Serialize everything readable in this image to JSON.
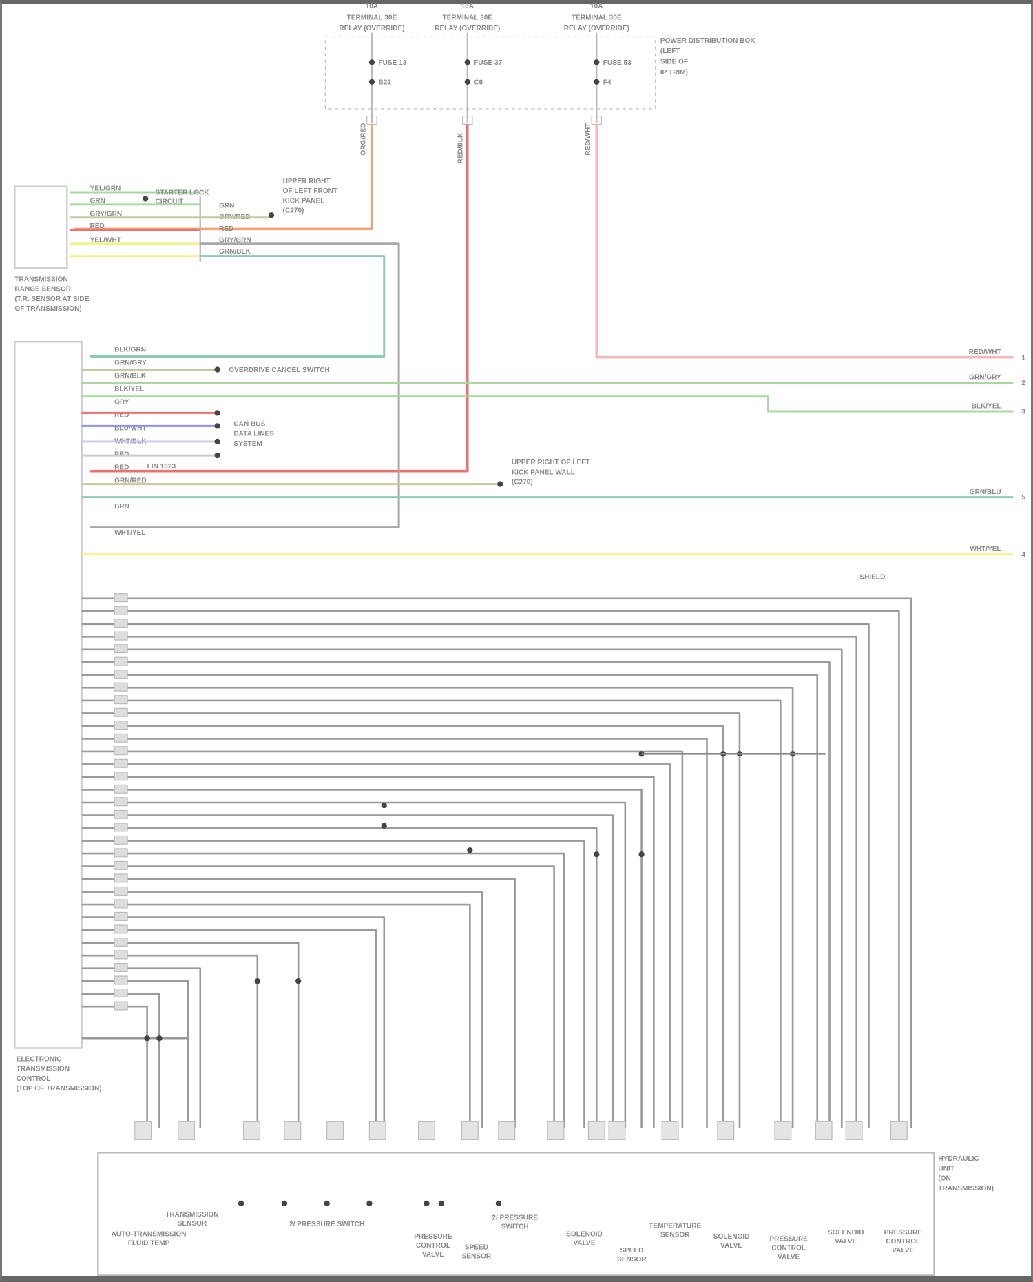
{
  "fuses": [
    {
      "rating": "10A",
      "line1": "TERMINAL 30E",
      "line2": "RELAY (OVERRIDE)",
      "fuse": "FUSE 13",
      "conn": "B22"
    },
    {
      "rating": "10A",
      "line1": "TERMINAL 30E",
      "line2": "RELAY (OVERRIDE)",
      "fuse": "FUSE 37",
      "conn": "C6"
    },
    {
      "rating": "10A",
      "line1": "TERMINAL 30E",
      "line2": "RELAY (OVERRIDE)",
      "fuse": "FUSE 53",
      "conn": "F4"
    }
  ],
  "fuse_box_label": [
    "POWER DISTRIBUTION BOX",
    "(LEFT",
    "SIDE OF",
    "IP TRIM)"
  ],
  "range_sensor": {
    "label": [
      "TRANSMISSION",
      "RANGE SENSOR",
      "(T.R. SENSOR AT SIDE",
      "OF TRANSMISSION)"
    ],
    "wires": [
      "YEL/GRN",
      "GRN",
      "GRY/GRN",
      "RED",
      "YEL/WHT",
      ""
    ],
    "splice_label": [
      "STARTER LOCK",
      "CIRCUIT"
    ],
    "right_wires": [
      "GRN",
      "GRY/RED",
      "RED",
      "GRY/GRN",
      "GRN/BLK"
    ],
    "ground_label": [
      "UPPER RIGHT",
      "OF LEFT FRONT",
      "KICK PANEL",
      "(C270)"
    ]
  },
  "fuse_wires": [
    "ORG/RED",
    "RED/BLK",
    "RED/WHT"
  ],
  "ecu": {
    "label": [
      "ELECTRONIC",
      "TRANSMISSION",
      "CONTROL",
      "(TOP OF TRANSMISSION)"
    ],
    "pin_wires": [
      "BLK/GRN",
      "GRN/GRY",
      "GRN/BLK",
      "BLK/YEL",
      "GRY",
      "RED",
      "BLU/WHT",
      "WHT/BLK",
      "RED",
      "RED",
      "GRN/RED",
      "",
      "BRN",
      "",
      "WHT/YEL",
      ""
    ],
    "splice_label": "OVERDRIVE CANCEL SWITCH",
    "can_label": [
      "CAN BUS",
      "DATA LINES",
      "SYSTEM"
    ],
    "can_id": "LIN 1623",
    "ground_label": [
      "UPPER RIGHT OF LEFT",
      "KICK PANEL WALL",
      "(C270)"
    ],
    "shield_label": "SHIELD"
  },
  "right_connectors": [
    {
      "wire": "RED/WHT",
      "pin": "1"
    },
    {
      "wire": "GRN/GRY",
      "pin": "2"
    },
    {
      "wire": "BLK/YEL",
      "pin": "3"
    },
    {
      "wire": "GRN/BLU",
      "pin": "5"
    },
    {
      "wire": "WHT/YEL",
      "pin": "4"
    }
  ],
  "transmission_unit": {
    "label": [
      "HYDRAULIC",
      "UNIT",
      "(ON",
      "TRANSMISSION)"
    ],
    "components": [
      {
        "name": [
          "AUTO-TRANSMISSION",
          "FLUID TEMP"
        ]
      },
      {
        "name": [
          "TRANSMISSION",
          "SENSOR"
        ]
      },
      {
        "name": [
          "2/ PRESSURE SWITCH"
        ]
      },
      {
        "name": [
          "PRESSURE",
          "CONTROL",
          "VALVE"
        ]
      },
      {
        "name": [
          "SPEED",
          "SENSOR"
        ]
      },
      {
        "name": [
          "2/ PRESSURE",
          "SWITCH"
        ]
      },
      {
        "name": [
          "SOLENOID",
          "VALVE"
        ]
      },
      {
        "name": [
          "SPEED",
          "SENSOR"
        ]
      },
      {
        "name": [
          "TEMPERATURE",
          "SENSOR"
        ]
      },
      {
        "name": [
          "SOLENOID",
          "VALVE"
        ]
      },
      {
        "name": [
          "PRESSURE",
          "CONTROL",
          "VALVE"
        ]
      },
      {
        "name": [
          "SOLENOID",
          "VALVE"
        ]
      },
      {
        "name": [
          "PRESSURE",
          "CONTROL",
          "VALVE"
        ]
      }
    ]
  },
  "colors": {
    "orange": "#f5a070",
    "red": "#f07070",
    "pink": "#f5b8b8",
    "green": "#a8d8a0",
    "yellow": "#f2f28a",
    "blue": "#9090f0",
    "teal": "#90c8b8",
    "gray": "#a8a8a8",
    "olive": "#c8c8a0"
  }
}
